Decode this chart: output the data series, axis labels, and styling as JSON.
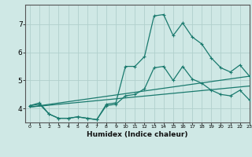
{
  "xlabel": "Humidex (Indice chaleur)",
  "background_color": "#cfe8e5",
  "grid_color": "#b0d0cc",
  "line_color": "#1a7a6e",
  "x_values": [
    0,
    1,
    2,
    3,
    4,
    5,
    6,
    7,
    8,
    9,
    10,
    11,
    12,
    13,
    14,
    15,
    16,
    17,
    18,
    19,
    20,
    21,
    22,
    23
  ],
  "line1": [
    4.1,
    4.2,
    3.8,
    3.65,
    3.65,
    3.7,
    3.65,
    3.6,
    4.15,
    4.2,
    5.5,
    5.5,
    5.85,
    7.3,
    7.35,
    6.6,
    7.05,
    6.55,
    6.3,
    5.8,
    5.45,
    5.3,
    5.55,
    5.15
  ],
  "line2": [
    4.1,
    4.15,
    3.8,
    3.65,
    3.65,
    3.7,
    3.65,
    3.6,
    4.1,
    4.15,
    4.45,
    4.5,
    4.7,
    5.45,
    5.5,
    5.0,
    5.5,
    5.05,
    4.9,
    4.65,
    4.5,
    4.45,
    4.65,
    4.3
  ],
  "line3_start": 4.05,
  "line3_end": 5.15,
  "line4_start": 4.05,
  "line4_end": 4.8,
  "ylim": [
    3.5,
    7.7
  ],
  "yticks": [
    4,
    5,
    6,
    7
  ],
  "xlim": [
    -0.5,
    23
  ]
}
